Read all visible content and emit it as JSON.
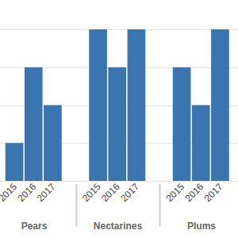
{
  "chart_data": {
    "type": "bar",
    "categories": [
      "Pears",
      "Nectarines",
      "Plums"
    ],
    "series": [
      {
        "name": "2015",
        "values": [
          1,
          4,
          3
        ]
      },
      {
        "name": "2016",
        "values": [
          3,
          3,
          2
        ]
      },
      {
        "name": "2017",
        "values": [
          2,
          4,
          4
        ]
      }
    ],
    "color": "#3a75b0",
    "ylim": [
      0,
      4
    ],
    "yticks": [
      0,
      1,
      2,
      3,
      4
    ],
    "grid": true,
    "tick_labels": "x"
  }
}
